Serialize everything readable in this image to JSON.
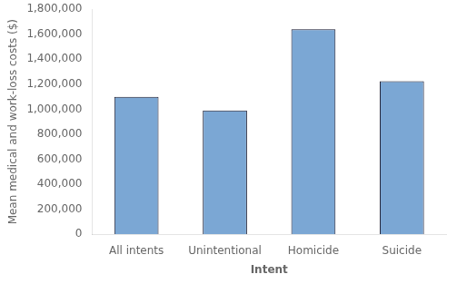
{
  "chart_data": {
    "type": "bar",
    "categories": [
      "All intents",
      "Unintentional",
      "Homicide",
      "Suicide"
    ],
    "values": [
      1100000,
      990000,
      1640000,
      1225000
    ],
    "color": "#7BA7D4",
    "xlabel": "Intent",
    "ylabel": "Mean medical and work-loss costs ($)",
    "ylim": [
      0,
      1800000
    ],
    "yticks": [
      0,
      {
        "value": 200000,
        "label": "200,000"
      },
      {
        "value": 400000,
        "label": "400,000"
      },
      {
        "value": 600000,
        "label": "600,000"
      },
      {
        "value": 800000,
        "label": "800,000"
      },
      {
        "value": 1000000,
        "label": "1,000,000"
      },
      {
        "value": 1200000,
        "label": "1,200,000"
      },
      {
        "value": 1400000,
        "label": "1,400,000"
      },
      {
        "value": 1600000,
        "label": "1,600,000"
      },
      {
        "value": 1800000,
        "label": "1,800,000"
      }
    ],
    "grid": false
  }
}
